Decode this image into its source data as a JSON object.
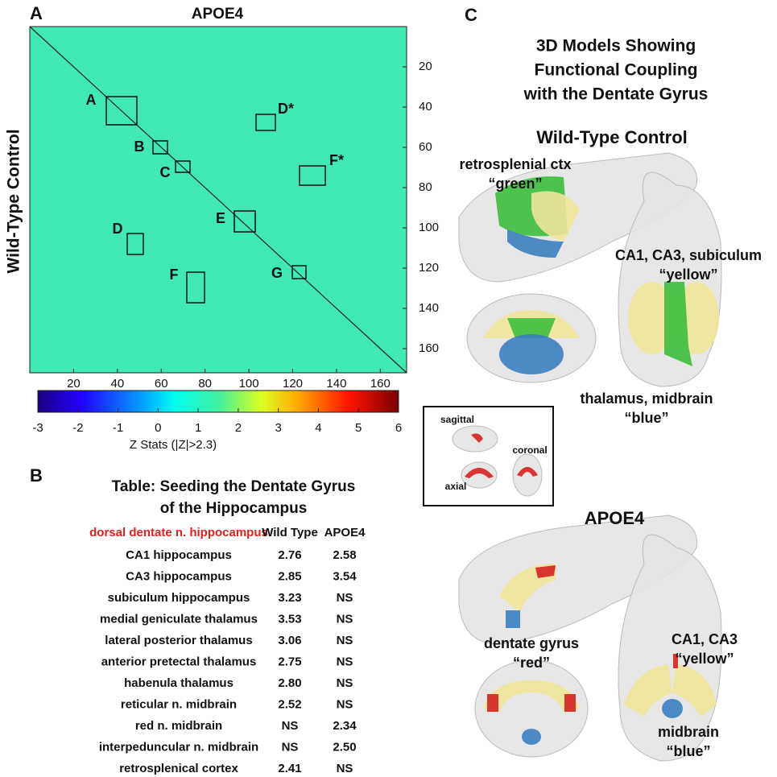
{
  "panel_a": {
    "label": "A",
    "title": "APOE4",
    "y_label": "Wild-Type Control",
    "lim": [
      0,
      172
    ],
    "ticks": [
      20,
      40,
      60,
      80,
      100,
      120,
      140,
      160
    ],
    "boxes": [
      "A",
      "B",
      "C",
      "D*",
      "F*",
      "E",
      "D",
      "F",
      "G"
    ],
    "colorbar": {
      "lim": [
        -3,
        6
      ],
      "ticks": [
        -3,
        -2,
        -1,
        0,
        1,
        2,
        3,
        4,
        5,
        6
      ],
      "label": "Z Stats (|Z|>2.3)"
    }
  },
  "panel_b": {
    "label": "B",
    "title": [
      "Table: Seeding the Dentate Gyrus",
      "of the Hippocampus"
    ],
    "header": [
      "dorsal dentate n. hippocampus",
      "Wild Type",
      "APOE4"
    ],
    "rows": [
      [
        "CA1 hippocampus",
        "2.76",
        "2.58"
      ],
      [
        "CA3 hippocampus",
        "2.85",
        "3.54"
      ],
      [
        "subiculum hippocampus",
        "3.23",
        "NS"
      ],
      [
        "medial geniculate thalamus",
        "3.53",
        "NS"
      ],
      [
        "lateral posterior thalamus",
        "3.06",
        "NS"
      ],
      [
        "anterior pretectal thalamus",
        "2.75",
        "NS"
      ],
      [
        "habenula thalamus",
        "2.80",
        "NS"
      ],
      [
        "reticular n. midbrain",
        "2.52",
        "NS"
      ],
      [
        "red n. midbrain",
        "NS",
        "2.34"
      ],
      [
        "interpeduncular n. midbrain",
        "NS",
        "2.50"
      ],
      [
        "retrosplenical cortex",
        "2.41",
        "NS"
      ]
    ]
  },
  "panel_c": {
    "label": "C",
    "title": [
      "3D Models Showing",
      "Functional Coupling",
      "with the Dentate Gyrus"
    ],
    "wild_type": {
      "title": "Wild-Type Control",
      "labels": [
        [
          "retrosplenial ctx",
          "“green”"
        ],
        [
          "CA1, CA3, subiculum",
          "“yellow”"
        ],
        [
          "thalamus, midbrain",
          "“blue”"
        ]
      ]
    },
    "inset": [
      "sagittal",
      "coronal",
      "axial"
    ],
    "apoe4": {
      "title": "APOE4",
      "labels": [
        [
          "CA1, CA3",
          "“yellow”"
        ],
        [
          "dentate gyrus",
          "“red”"
        ],
        [
          "midbrain",
          "“blue”"
        ]
      ]
    }
  }
}
